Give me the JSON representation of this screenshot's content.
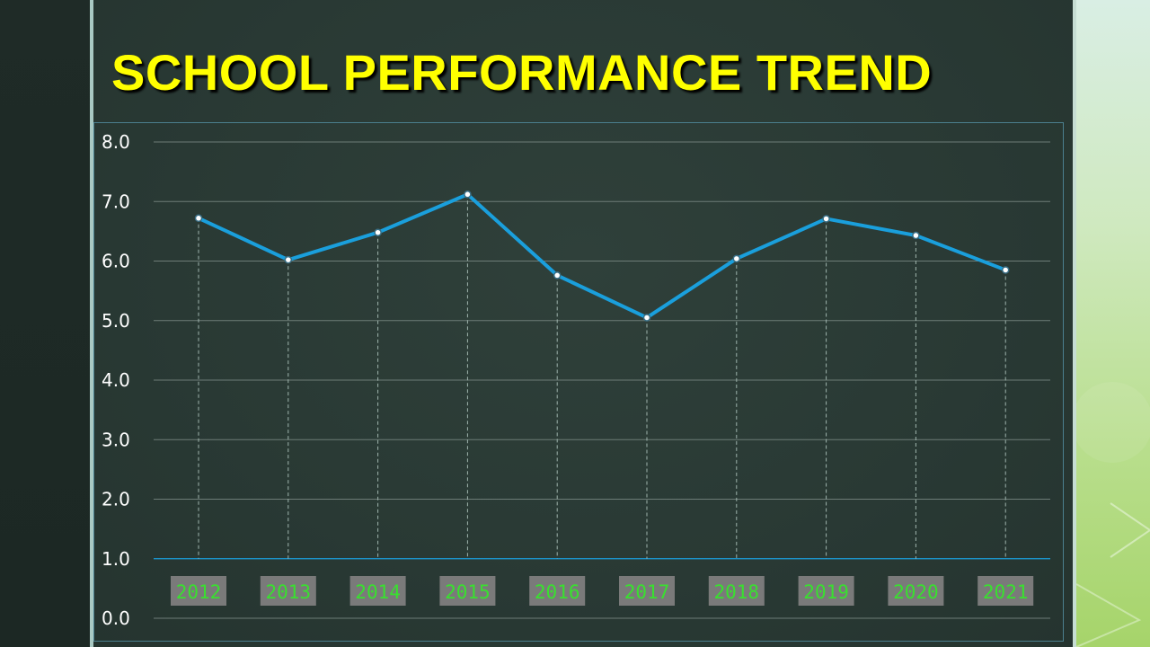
{
  "title": "SCHOOL PERFORMANCE TREND",
  "colors": {
    "title": "#ffff00",
    "line": "#1a9fdc",
    "xtick_text": "#39e02f",
    "xtick_bg": "#7a7a7a",
    "gridline": "#6d7c77"
  },
  "chart_data": {
    "type": "line",
    "title": "SCHOOL PERFORMANCE TREND",
    "xlabel": "",
    "ylabel": "",
    "categories": [
      "2012",
      "2013",
      "2014",
      "2015",
      "2016",
      "2017",
      "2018",
      "2019",
      "2020",
      "2021"
    ],
    "series": [
      {
        "values": [
          6.72,
          6.02,
          6.48,
          7.12,
          5.76,
          5.05,
          6.04,
          6.71,
          6.43,
          5.85
        ]
      }
    ],
    "y_ticks": [
      "0.0",
      "1.0",
      "2.0",
      "3.0",
      "4.0",
      "5.0",
      "6.0",
      "7.0",
      "8.0"
    ],
    "ylim": [
      0,
      8
    ],
    "x_axis_at": 1.0,
    "grid": true,
    "legend": "none"
  }
}
